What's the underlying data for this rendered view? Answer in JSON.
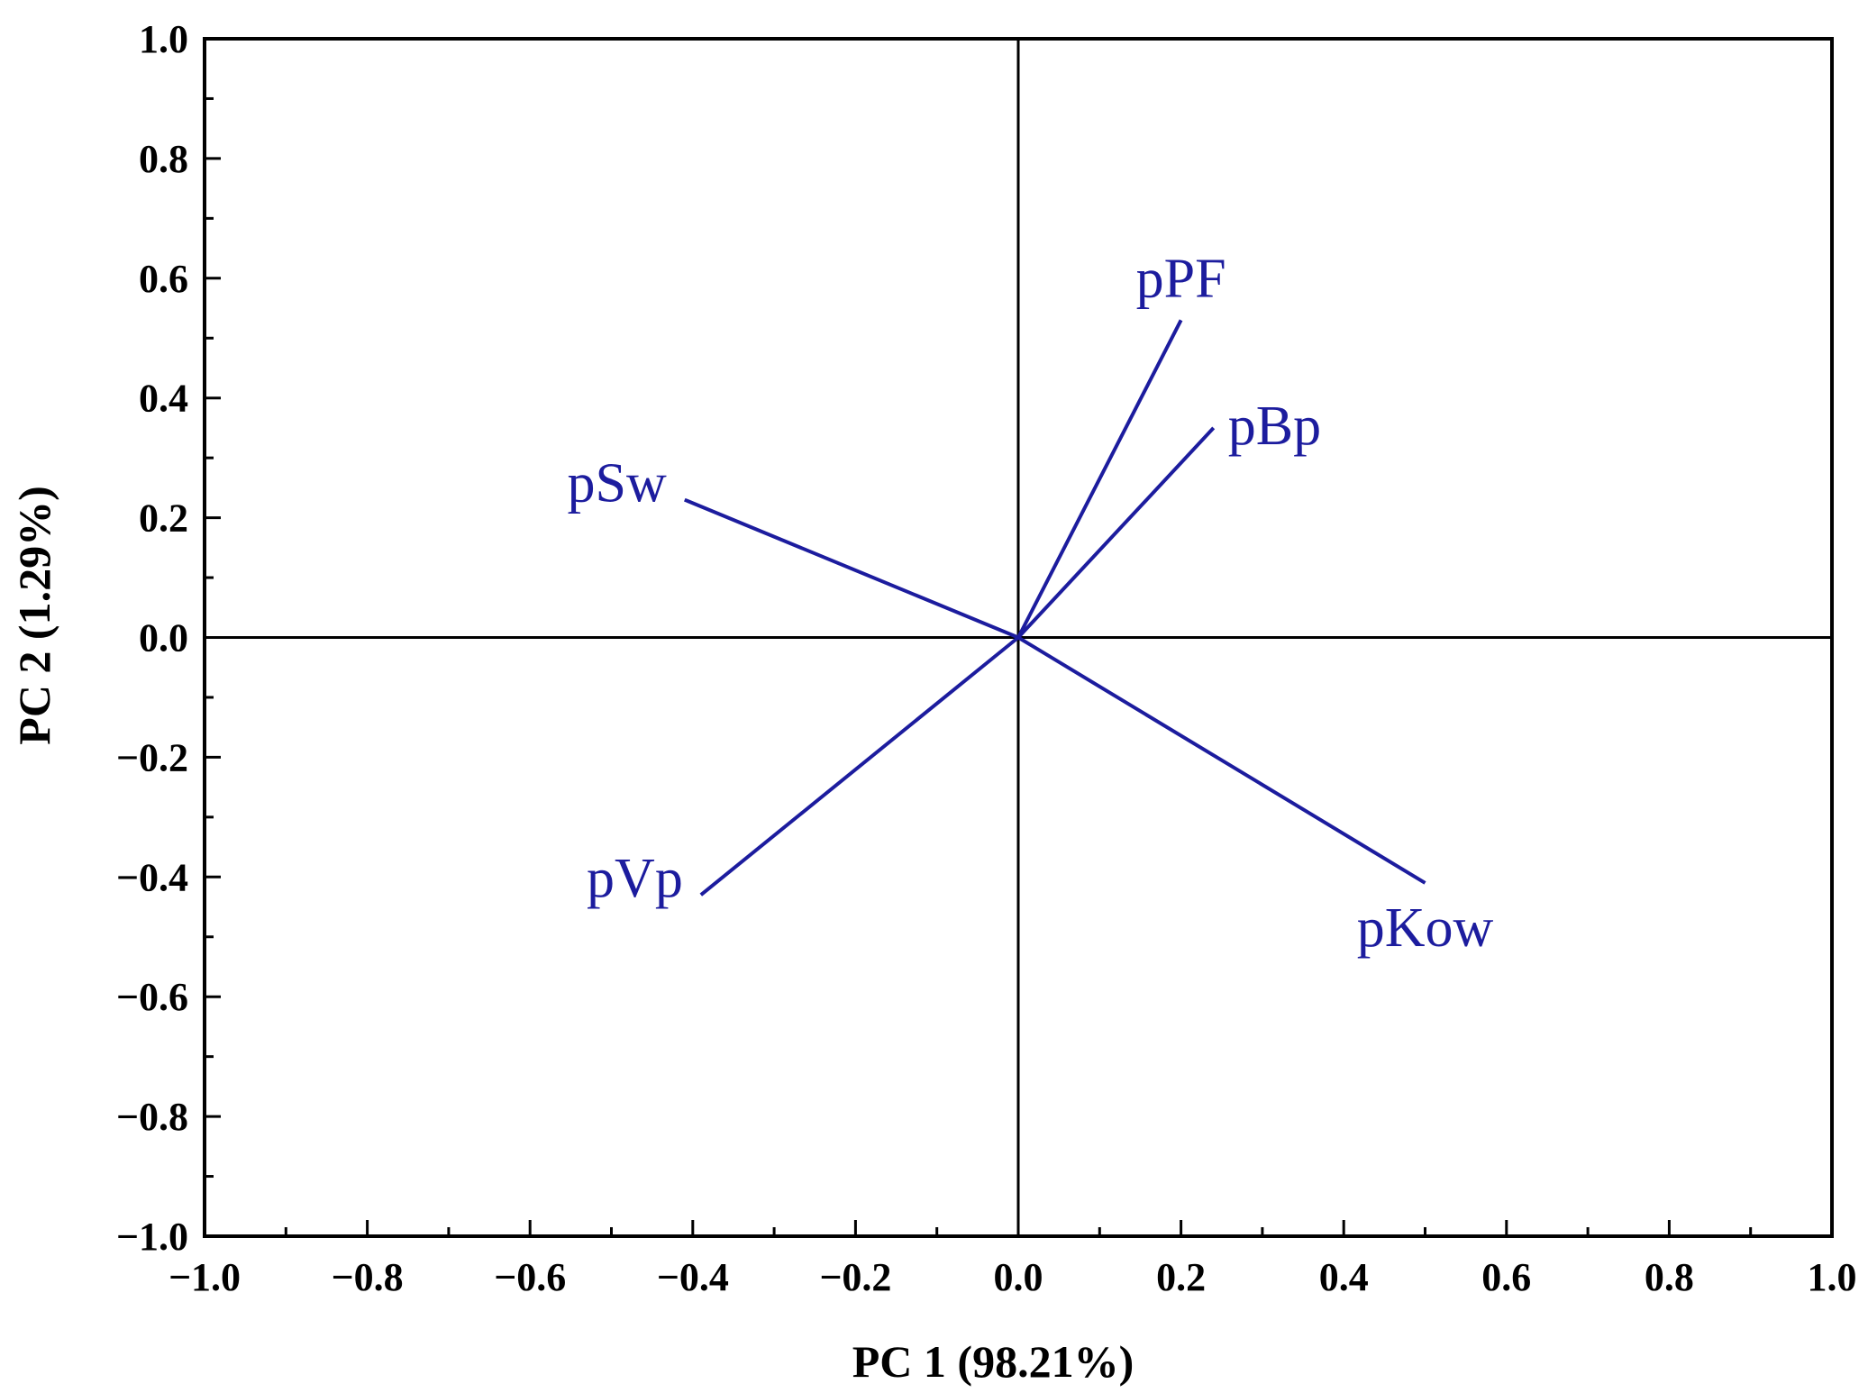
{
  "chart_data": {
    "type": "scatter",
    "subtype": "pca-loading-plot",
    "title": "",
    "xlabel": "PC 1 (98.21%)",
    "ylabel": "PC 2 (1.29%)",
    "xlim": [
      -1.0,
      1.0
    ],
    "ylim": [
      -1.0,
      1.0
    ],
    "x_ticks": [
      -1.0,
      -0.8,
      -0.6,
      -0.4,
      -0.2,
      0.0,
      0.2,
      0.4,
      0.6,
      0.8,
      1.0
    ],
    "x_tick_labels": [
      "−1.0",
      "−0.8",
      "−0.6",
      "−0.4",
      "−0.2",
      "0.0",
      "0.2",
      "0.4",
      "0.6",
      "0.8",
      "1.0"
    ],
    "y_ticks": [
      1.0,
      0.8,
      0.6,
      0.4,
      0.2,
      0.0,
      -0.2,
      -0.4,
      -0.6,
      -0.8,
      -1.0
    ],
    "y_tick_labels": [
      "1.0",
      "0.8",
      "0.6",
      "0.4",
      "0.2",
      "0.0",
      "−0.2",
      "−0.4",
      "−0.6",
      "−0.8",
      "−1.0"
    ],
    "grid": false,
    "reference_lines": {
      "x": 0.0,
      "y": 0.0
    },
    "vector_color": "#1c1c9e",
    "series": [
      {
        "name": "pPF",
        "x": 0.2,
        "y": 0.53,
        "label_anchor": "top"
      },
      {
        "name": "pBp",
        "x": 0.24,
        "y": 0.35,
        "label_anchor": "right"
      },
      {
        "name": "pSw",
        "x": -0.41,
        "y": 0.23,
        "label_anchor": "left"
      },
      {
        "name": "pVp",
        "x": -0.39,
        "y": -0.43,
        "label_anchor": "left"
      },
      {
        "name": "pKow",
        "x": 0.5,
        "y": -0.41,
        "label_anchor": "bottom"
      }
    ]
  }
}
